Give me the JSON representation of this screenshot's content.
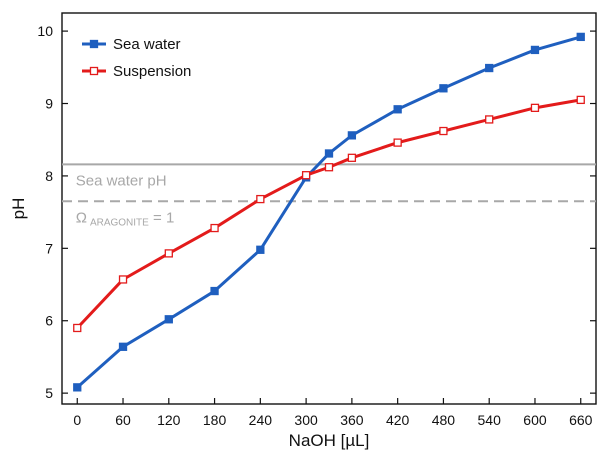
{
  "chart_data": {
    "type": "line",
    "xlabel": "NaOH [µL]",
    "ylabel": "pH",
    "xlim": [
      -20,
      680
    ],
    "ylim": [
      4.85,
      10.25
    ],
    "xticks": [
      0,
      60,
      120,
      180,
      240,
      300,
      360,
      420,
      480,
      540,
      600,
      660
    ],
    "yticks": [
      5,
      6,
      7,
      8,
      9,
      10
    ],
    "grid": false,
    "legend": "top-left",
    "series": [
      {
        "name": "Sea water",
        "color": "#1f5fbf",
        "marker": "filled-square",
        "x": [
          0,
          60,
          120,
          180,
          240,
          300,
          330,
          360,
          420,
          480,
          540,
          600,
          660
        ],
        "y": [
          5.08,
          5.64,
          6.02,
          6.41,
          6.98,
          7.98,
          8.31,
          8.56,
          8.92,
          9.21,
          9.49,
          9.74,
          9.92
        ]
      },
      {
        "name": "Suspension",
        "color": "#e31b1b",
        "marker": "open-square",
        "x": [
          0,
          60,
          120,
          180,
          240,
          300,
          330,
          360,
          420,
          480,
          540,
          600,
          660
        ],
        "y": [
          5.9,
          6.57,
          6.93,
          7.28,
          7.68,
          8.01,
          8.12,
          8.25,
          8.46,
          8.62,
          8.78,
          8.94,
          9.05
        ]
      }
    ],
    "reference_lines": [
      {
        "label": "Sea water pH",
        "y": 8.16,
        "style": "solid",
        "color": "#a8a8a8"
      },
      {
        "label_parts": [
          "Ω",
          "ARAGONITE",
          " = 1"
        ],
        "y": 7.65,
        "style": "dashed",
        "color": "#a8a8a8"
      }
    ]
  }
}
